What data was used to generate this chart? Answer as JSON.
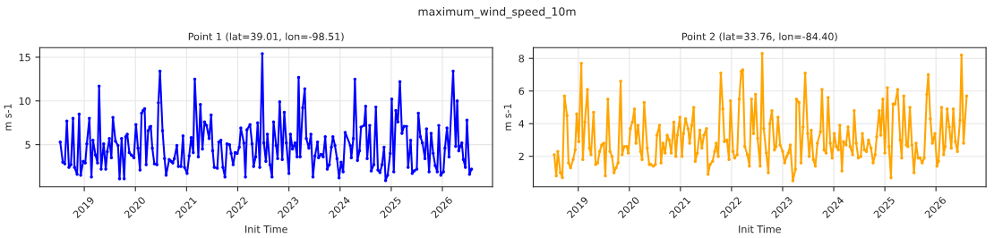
{
  "chart_data": [
    {
      "type": "line",
      "title": "Point 1 (lat=39.01, lon=-98.51)",
      "xlabel": "Init Time",
      "ylabel": "m s-1",
      "annotations": [
        "maximum_wind_speed_10m"
      ],
      "x": [
        2018.53,
        2018.58,
        2018.62,
        2018.66,
        2018.7,
        2018.74,
        2018.78,
        2018.81,
        2018.86,
        2018.9,
        2018.93,
        2018.98,
        2019.02,
        2019.05,
        2019.1,
        2019.14,
        2019.17,
        2019.22,
        2019.26,
        2019.29,
        2019.33,
        2019.38,
        2019.42,
        2019.45,
        2019.49,
        2019.53,
        2019.56,
        2019.61,
        2019.66,
        2019.69,
        2019.73,
        2019.78,
        2019.81,
        2019.84,
        2019.88,
        2019.92,
        2019.97,
        2020.01,
        2020.05,
        2020.09,
        2020.12,
        2020.15,
        2020.18,
        2020.21,
        2020.25,
        2020.28,
        2020.3,
        2020.33,
        2020.37,
        2020.42,
        2020.45,
        2020.48,
        2020.53,
        2020.57,
        2020.6,
        2020.66,
        2020.7,
        2020.73,
        2020.76,
        2020.81,
        2020.84,
        2020.89,
        2020.93,
        2020.96,
        2021.01,
        2021.05,
        2021.09,
        2021.13,
        2021.16,
        2021.23,
        2021.27,
        2021.31,
        2021.35,
        2021.39,
        2021.44,
        2021.48,
        2021.51,
        2021.54,
        2021.6,
        2021.63,
        2021.67,
        2021.71,
        2021.75,
        2021.79,
        2021.84,
        2021.87,
        2021.91,
        2021.95,
        2021.99,
        2022.03,
        2022.06,
        2022.12,
        2022.15,
        2022.18,
        2022.24,
        2022.28,
        2022.31,
        2022.35,
        2022.39,
        2022.43,
        2022.48,
        2022.51,
        2022.55,
        2022.58,
        2022.63,
        2022.67,
        2022.7,
        2022.75,
        2022.78,
        2022.82,
        2022.87,
        2022.91,
        2022.95,
        2023.0,
        2023.03,
        2023.07,
        2023.12,
        2023.16,
        2023.19,
        2023.22,
        2023.27,
        2023.31,
        2023.34,
        2023.39,
        2023.43,
        2023.47,
        2023.51,
        2023.56,
        2023.58,
        2023.63,
        2023.67,
        2023.71,
        2023.75,
        2023.79,
        2023.83,
        2023.86,
        2023.9,
        2023.94,
        2023.98,
        2024.02,
        2024.06,
        2024.1,
        2024.2,
        2024.22,
        2024.26,
        2024.29,
        2024.34,
        2024.38,
        2024.41,
        2024.47,
        2024.5,
        2024.53,
        2024.58,
        2024.61,
        2024.66,
        2024.7,
        2024.74,
        2024.78,
        2024.82,
        2024.86,
        2024.89,
        2024.93,
        2024.98,
        2025.01,
        2025.05,
        2025.09,
        2025.13,
        2025.17,
        2025.21,
        2025.25,
        2025.3,
        2025.33,
        2025.38,
        2025.41,
        2025.45,
        2025.5,
        2025.53,
        2025.57,
        2025.61,
        2025.66,
        2025.69,
        2025.74,
        2025.78,
        2025.82,
        2025.86,
        2025.9,
        2025.93,
        2025.97,
        2026.02,
        2026.05,
        2026.09,
        2026.13,
        2026.21,
        2026.26,
        2026.29,
        2026.32,
        2026.35,
        2026.38,
        2026.41,
        2026.45,
        2026.48,
        2026.53,
        2026.57
      ],
      "series": [
        {
          "color": "#0000ff",
          "values": [
            5.3,
            3.0,
            2.8,
            7.7,
            2.4,
            2.7,
            8.0,
            2.4,
            1.6,
            8.5,
            1.5,
            3.1,
            2.9,
            5.1,
            8.0,
            1.3,
            5.5,
            3.8,
            2.9,
            11.7,
            2.2,
            5.1,
            2.2,
            4.2,
            5.7,
            3.5,
            8.1,
            5.4,
            4.9,
            1.1,
            5.7,
            1.1,
            5.9,
            6.2,
            4.1,
            3.8,
            3.5,
            7.3,
            4.6,
            2.1,
            8.6,
            8.9,
            9.1,
            2.7,
            6.6,
            7.0,
            7.1,
            4.6,
            2.8,
            2.7,
            9.8,
            13.4,
            6.6,
            3.4,
            1.5,
            3.3,
            3.1,
            2.9,
            3.4,
            4.9,
            2.5,
            2.5,
            6.0,
            2.4,
            1.7,
            3.7,
            5.8,
            4.1,
            12.5,
            3.6,
            9.6,
            4.5,
            7.6,
            7.2,
            5.7,
            8.4,
            4.3,
            2.4,
            2.3,
            5.3,
            5.5,
            2.4,
            1.3,
            5.1,
            5.0,
            4.0,
            2.7,
            4.1,
            4.0,
            4.7,
            6.9,
            5.2,
            1.3,
            6.7,
            7.3,
            5.1,
            2.5,
            3.6,
            7.5,
            2.4,
            15.4,
            5.2,
            3.1,
            6.2,
            2.7,
            1.3,
            7.6,
            4.9,
            3.4,
            9.9,
            3.3,
            8.7,
            5.2,
            1.7,
            6.2,
            4.5,
            5.2,
            3.6,
            12.7,
            3.6,
            9.2,
            11.4,
            5.7,
            4.6,
            6.2,
            1.3,
            3.7,
            5.3,
            3.5,
            3.9,
            3.6,
            5.9,
            2.2,
            2.7,
            4.7,
            5.9,
            4.9,
            3.4,
            1.2,
            3.0,
            1.9,
            6.4,
            4.9,
            3.5,
            5.7,
            12.5,
            3.2,
            4.3,
            7.0,
            7.2,
            9.4,
            3.4,
            7.2,
            2.0,
            2.7,
            9.3,
            2.1,
            1.8,
            2.7,
            4.7,
            0.9,
            1.5,
            4.0,
            10.2,
            1.9,
            8.9,
            7.6,
            12.2,
            6.3,
            7.1,
            7.1,
            2.4,
            5.5,
            1.7,
            2.0,
            2.2,
            8.6,
            5.9,
            5.2,
            3.4,
            6.8,
            1.9,
            6.3,
            4.0,
            2.6,
            1.9,
            7.2,
            1.5,
            1.9,
            4.6,
            6.9,
            3.6,
            13.4,
            4.8,
            10.0,
            4.3,
            4.8,
            5.2,
            3.3,
            2.4,
            7.8,
            1.6,
            2.2
          ]
        }
      ],
      "xlim": [
        2018.13,
        2026.98
      ],
      "xticks": [
        2019,
        2020,
        2021,
        2022,
        2023,
        2024,
        2025,
        2026
      ],
      "ylim": [
        0.17,
        16.1
      ],
      "yticks": [
        5,
        10,
        15
      ],
      "grid": true,
      "marker": "circle",
      "line_style": "solid"
    },
    {
      "type": "line",
      "title": "Point 2 (lat=33.76, lon=-84.40)",
      "xlabel": "Init Time",
      "ylabel": "m s-1",
      "x": [
        2018.53,
        2018.57,
        2018.6,
        2018.65,
        2018.69,
        2018.73,
        2018.78,
        2018.81,
        2018.85,
        2018.9,
        2018.94,
        2018.97,
        2019.01,
        2019.06,
        2019.09,
        2019.13,
        2019.18,
        2019.22,
        2019.25,
        2019.3,
        2019.34,
        2019.38,
        2019.42,
        2019.46,
        2019.5,
        2019.53,
        2019.58,
        2019.62,
        2019.66,
        2019.7,
        2019.74,
        2019.78,
        2019.83,
        2019.86,
        2019.9,
        2019.95,
        2019.98,
        2020.02,
        2020.06,
        2020.1,
        2020.13,
        2020.17,
        2020.22,
        2020.25,
        2020.29,
        2020.35,
        2020.39,
        2020.42,
        2020.47,
        2020.51,
        2020.54,
        2020.59,
        2020.62,
        2020.66,
        2020.7,
        2020.74,
        2020.78,
        2020.82,
        2020.87,
        2020.91,
        2020.94,
        2020.99,
        2021.03,
        2021.06,
        2021.1,
        2021.15,
        2021.18,
        2021.22,
        2021.26,
        2021.29,
        2021.33,
        2021.38,
        2021.42,
        2021.46,
        2021.51,
        2021.54,
        2021.58,
        2021.63,
        2021.67,
        2021.7,
        2021.74,
        2021.79,
        2021.83,
        2021.86,
        2021.91,
        2021.95,
        2021.98,
        2022.03,
        2022.06,
        2022.11,
        2022.15,
        2022.19,
        2022.22,
        2022.26,
        2022.31,
        2022.35,
        2022.39,
        2022.43,
        2022.47,
        2022.51,
        2022.56,
        2022.6,
        2022.63,
        2022.68,
        2022.72,
        2022.75,
        2022.79,
        2022.84,
        2022.87,
        2022.91,
        2022.95,
        2023.0,
        2023.04,
        2023.08,
        2023.11,
        2023.15,
        2023.2,
        2023.25,
        2023.27,
        2023.32,
        2023.36,
        2023.4,
        2023.44,
        2023.49,
        2023.52,
        2023.56,
        2023.6,
        2023.64,
        2023.68,
        2023.74,
        2023.77,
        2023.81,
        2023.85,
        2023.89,
        2023.93,
        2023.97,
        2024.01,
        2024.05,
        2024.09,
        2024.12,
        2024.16,
        2024.19,
        2024.24,
        2024.28,
        2024.32,
        2024.37,
        2024.4,
        2024.44,
        2024.48,
        2024.53,
        2024.56,
        2024.6,
        2024.64,
        2024.68,
        2024.73,
        2024.77,
        2024.81,
        2024.84,
        2024.89,
        2024.92,
        2024.96,
        2025.0,
        2025.05,
        2025.08,
        2025.12,
        2025.16,
        2025.2,
        2025.25,
        2025.3,
        2025.33,
        2025.37,
        2025.42,
        2025.45,
        2025.49,
        2025.53,
        2025.57,
        2025.61,
        2025.65,
        2025.69,
        2025.73,
        2025.77,
        2025.82,
        2025.85,
        2025.89,
        2025.93,
        2025.98,
        2026.02,
        2026.05,
        2026.11,
        2026.15,
        2026.18,
        2026.22,
        2026.26,
        2026.3,
        2026.34,
        2026.38,
        2026.42,
        2026.47,
        2026.5,
        2026.54,
        2026.6
      ],
      "series": [
        {
          "color": "#ffa500",
          "values": [
            2.1,
            0.8,
            2.3,
            1.0,
            0.7,
            5.7,
            4.5,
            1.6,
            1.3,
            1.8,
            2.4,
            4.6,
            2.9,
            7.7,
            1.8,
            4.1,
            6.1,
            2.5,
            2.1,
            4.7,
            1.5,
            1.6,
            2.3,
            2.7,
            2.8,
            0.8,
            5.5,
            2.3,
            2.0,
            1.0,
            1.3,
            1.6,
            6.6,
            2.1,
            2.6,
            2.6,
            2.2,
            3.7,
            4.1,
            4.9,
            2.8,
            3.9,
            2.3,
            1.8,
            5.3,
            2.5,
            1.5,
            1.5,
            1.4,
            1.5,
            3.3,
            3.9,
            1.6,
            2.8,
            2.2,
            3.3,
            3.0,
            2.2,
            4.1,
            2.0,
            3.3,
            4.4,
            2.0,
            3.4,
            4.3,
            3.7,
            2.8,
            3.9,
            5.0,
            1.7,
            2.2,
            3.6,
            2.5,
            3.3,
            3.7,
            0.9,
            1.5,
            1.7,
            2.3,
            2.8,
            2.0,
            7.1,
            4.9,
            2.9,
            3.0,
            1.8,
            5.4,
            2.3,
            1.9,
            2.1,
            5.5,
            7.2,
            7.3,
            2.6,
            2.1,
            1.4,
            5.5,
            3.4,
            5.8,
            3.1,
            1.4,
            8.3,
            3.7,
            2.2,
            1.0,
            4.0,
            4.8,
            2.4,
            2.6,
            4.4,
            2.7,
            2.3,
            1.6,
            2.0,
            2.2,
            2.7,
            0.5,
            1.2,
            5.5,
            5.3,
            1.6,
            3.8,
            7.1,
            3.4,
            2.0,
            3.6,
            1.8,
            1.4,
            2.8,
            3.5,
            6.1,
            2.4,
            2.2,
            5.6,
            2.8,
            1.9,
            3.4,
            2.6,
            2.4,
            3.9,
            1.1,
            2.9,
            2.7,
            3.8,
            2.6,
            2.1,
            4.8,
            2.8,
            1.9,
            2.0,
            3.4,
            2.4,
            2.3,
            3.0,
            2.5,
            1.6,
            2.1,
            3.2,
            4.8,
            3.3,
            5.5,
            2.2,
            6.2,
            2.6,
            0.7,
            5.2,
            5.2,
            6.1,
            3.0,
            1.9,
            5.7,
            2.7,
            2.6,
            5.0,
            2.7,
            1.0,
            2.8,
            1.9,
            1.9,
            1.6,
            1.9,
            5.8,
            7.0,
            4.3,
            2.8,
            3.4,
            1.4,
            1.7,
            5.0,
            2.1,
            2.6,
            4.9,
            3.8,
            2.5,
            4.9,
            2.9,
            2.3,
            4.2,
            8.2,
            2.8,
            5.7
          ]
        }
      ],
      "xlim": [
        2018.12,
        2026.98
      ],
      "xticks": [
        2019,
        2020,
        2021,
        2022,
        2023,
        2024,
        2025,
        2026
      ],
      "ylim": [
        0.13,
        8.66
      ],
      "yticks": [
        2,
        4,
        6,
        8
      ],
      "grid": true,
      "marker": "circle",
      "line_style": "solid"
    }
  ]
}
